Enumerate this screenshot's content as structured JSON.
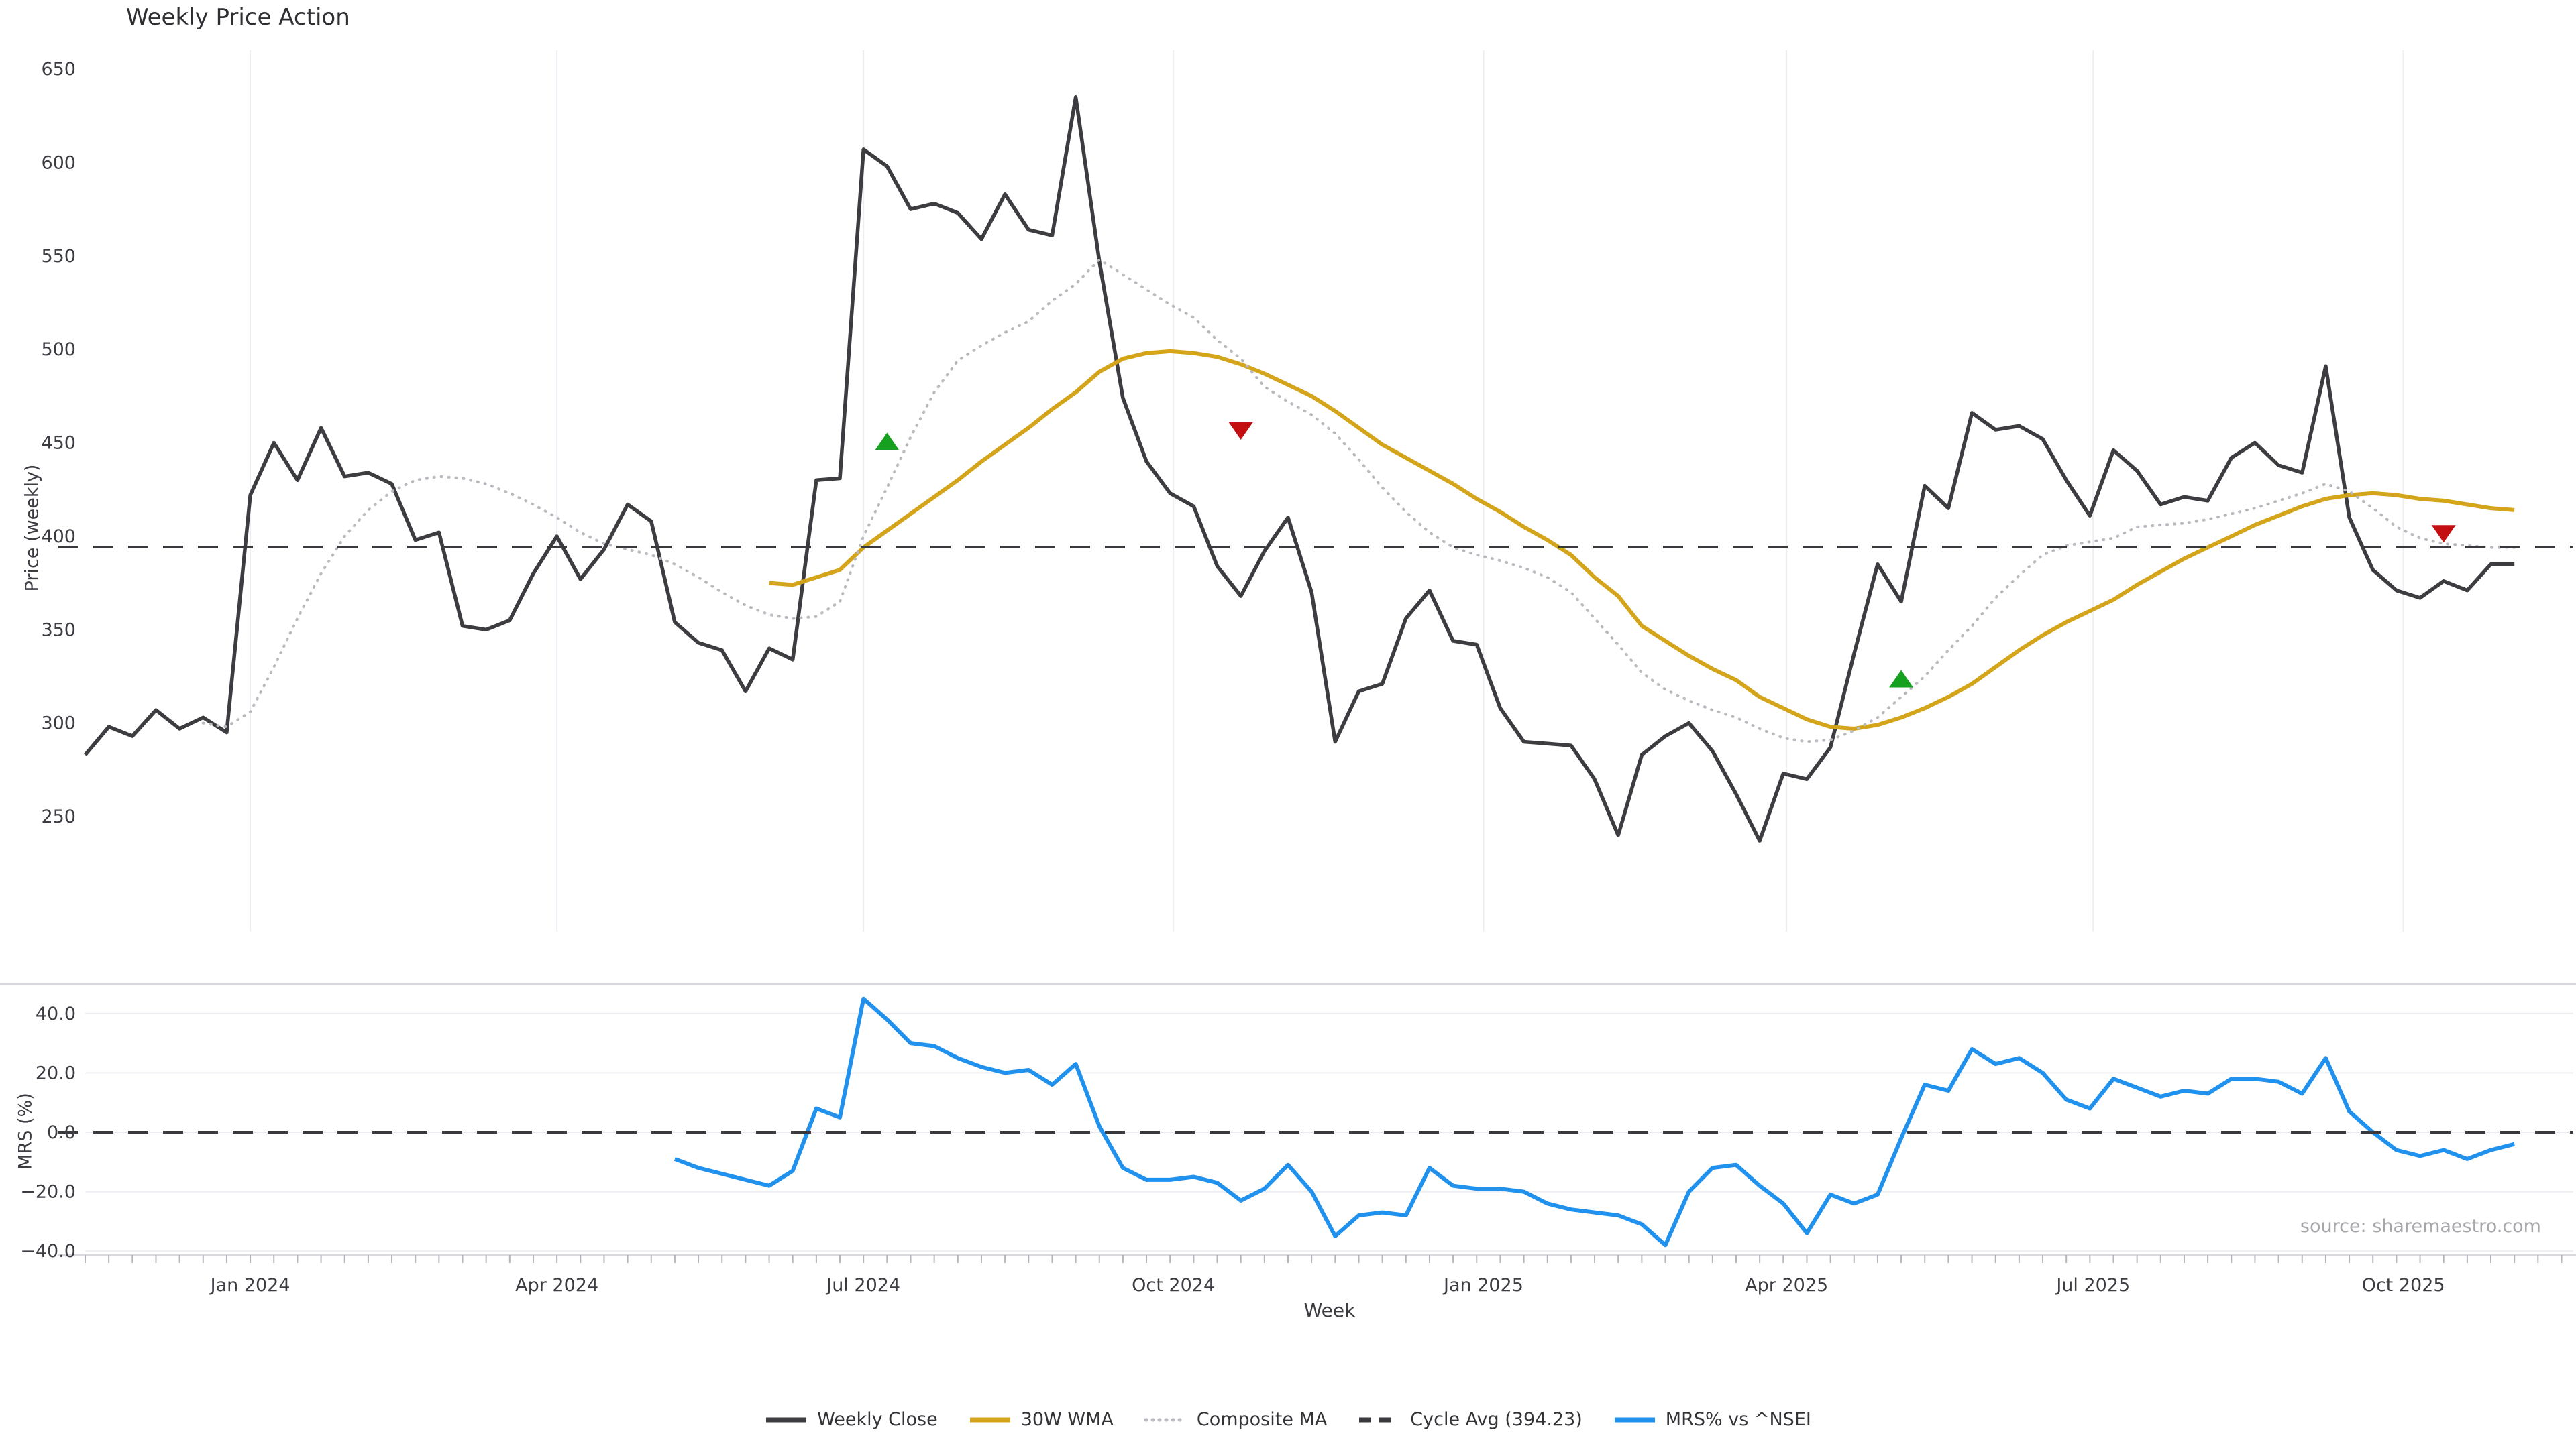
{
  "title": "Weekly Price Action",
  "source": "source: sharemaestro.com",
  "xlabel": "Week",
  "price_panel": {
    "ylabel": "Price (weekly)"
  },
  "mrs_panel": {
    "ylabel": "MRS (%)"
  },
  "legend": {
    "items": [
      {
        "label": "Weekly Close",
        "color": "#3d3d41",
        "style": "solid"
      },
      {
        "label": "30W WMA",
        "color": "#d4a41a",
        "style": "solid"
      },
      {
        "label": "Composite MA",
        "color": "#b9b9bf",
        "style": "dotted"
      },
      {
        "label": "Cycle Avg (394.23)",
        "color": "#3a3a3e",
        "style": "dashed"
      },
      {
        "label": "MRS% vs ^NSEI",
        "color": "#2191ee",
        "style": "solid"
      }
    ]
  },
  "colors": {
    "grid": "#ededf2",
    "panel_border": "#d8d8df",
    "tick": "#b4b4bc",
    "tick_label": "#3c3c43",
    "buy_marker": "#16a01f",
    "sell_marker": "#c40f12"
  },
  "chart_data": {
    "type": "line",
    "title": "Weekly Price Action",
    "xlabel": "Week",
    "x": {
      "unit": "week",
      "start": "2023-11-13",
      "count": 104
    },
    "x_ticks": [
      {
        "pos": 7.0,
        "label": "Jan 2024"
      },
      {
        "pos": 20.0,
        "label": "Apr 2024"
      },
      {
        "pos": 33.0,
        "label": "Jul 2024"
      },
      {
        "pos": 46.14,
        "label": "Oct 2024"
      },
      {
        "pos": 59.29,
        "label": "Jan 2025"
      },
      {
        "pos": 72.14,
        "label": "Apr 2025"
      },
      {
        "pos": 85.14,
        "label": "Jul 2025"
      },
      {
        "pos": 98.29,
        "label": "Oct 2025"
      }
    ],
    "panels": [
      {
        "id": "price",
        "ylabel": "Price (weekly)",
        "ylim": [
          203,
          660
        ],
        "yticks": [
          650,
          600,
          550,
          500,
          450,
          400,
          350,
          300,
          250
        ],
        "grid": "vertical"
      },
      {
        "id": "mrs",
        "ylabel": "MRS (%)",
        "ylim": [
          -47,
          50
        ],
        "yticks": [
          40.0,
          20.0,
          0.0,
          -20.0,
          -40.0
        ],
        "grid": "horizontal"
      }
    ],
    "cycle_avg": 394.23,
    "series": [
      {
        "name": "Weekly Close",
        "panel": "price",
        "color": "#3d3d41",
        "style": "solid",
        "width": 5.5,
        "values": [
          283,
          298,
          293,
          307,
          297,
          303,
          295,
          422,
          450,
          430,
          458,
          432,
          434,
          428,
          398,
          402,
          352,
          350,
          355,
          380,
          400,
          377,
          393,
          417,
          408,
          354,
          343,
          339,
          317,
          340,
          334,
          430,
          431,
          607,
          598,
          575,
          578,
          573,
          559,
          583,
          564,
          561,
          635,
          547,
          474,
          440,
          423,
          416,
          384,
          368,
          392,
          410,
          370,
          290,
          317,
          321,
          356,
          371,
          344,
          342,
          308,
          290,
          289,
          288,
          270,
          240,
          283,
          293,
          300,
          285,
          262,
          237,
          273,
          270,
          287,
          337,
          385,
          365,
          427,
          415,
          466,
          457,
          459,
          452,
          430,
          411,
          446,
          435,
          417,
          421,
          419,
          442,
          450,
          438,
          434,
          491,
          410,
          382,
          371,
          367,
          376,
          371,
          385,
          385
        ]
      },
      {
        "name": "30W WMA",
        "panel": "price",
        "color": "#d4a41a",
        "style": "solid",
        "width": 6,
        "values": [
          null,
          null,
          null,
          null,
          null,
          null,
          null,
          null,
          null,
          null,
          null,
          null,
          null,
          null,
          null,
          null,
          null,
          null,
          null,
          null,
          null,
          null,
          null,
          null,
          null,
          null,
          null,
          null,
          null,
          375,
          374,
          378,
          382,
          394,
          403,
          412,
          421,
          430,
          440,
          449,
          458,
          468,
          477,
          488,
          495,
          498,
          499,
          498,
          496,
          492,
          487,
          481,
          475,
          467,
          458,
          449,
          442,
          435,
          428,
          420,
          413,
          405,
          398,
          390,
          378,
          368,
          352,
          344,
          336,
          329,
          323,
          314,
          308,
          302,
          298,
          297,
          299,
          303,
          308,
          314,
          321,
          330,
          339,
          347,
          354,
          360,
          366,
          374,
          381,
          388,
          394,
          400,
          406,
          411,
          416,
          420,
          422,
          423,
          422,
          420,
          419,
          417,
          415,
          414
        ]
      },
      {
        "name": "Composite MA",
        "panel": "price",
        "color": "#b9b9bf",
        "style": "dotted",
        "width": 4,
        "values": [
          null,
          null,
          null,
          null,
          null,
          300,
          298,
          306,
          330,
          356,
          380,
          400,
          414,
          424,
          430,
          432,
          431,
          428,
          423,
          417,
          410,
          402,
          396,
          393,
          390,
          385,
          378,
          370,
          363,
          358,
          356,
          357,
          365,
          400,
          426,
          453,
          477,
          494,
          502,
          509,
          515,
          526,
          535,
          548,
          540,
          532,
          524,
          517,
          505,
          495,
          480,
          472,
          465,
          455,
          441,
          426,
          413,
          402,
          394,
          390,
          387,
          383,
          378,
          370,
          356,
          342,
          327,
          318,
          312,
          307,
          303,
          297,
          292,
          290,
          291,
          296,
          303,
          314,
          325,
          339,
          352,
          367,
          379,
          390,
          395,
          397,
          399,
          405,
          406,
          407,
          409,
          412,
          415,
          419,
          423,
          428,
          424,
          415,
          405,
          399,
          396,
          395,
          394,
          394
        ]
      },
      {
        "name": "Cycle Avg (394.23)",
        "panel": "price",
        "color": "#3a3a3e",
        "style": "dashed",
        "width": 4,
        "const_value": 394.23
      },
      {
        "name": "MRS% vs ^NSEI",
        "panel": "mrs",
        "color": "#2191ee",
        "style": "solid",
        "width": 6,
        "values": [
          null,
          null,
          null,
          null,
          null,
          null,
          null,
          null,
          null,
          null,
          null,
          null,
          null,
          null,
          null,
          null,
          null,
          null,
          null,
          null,
          null,
          null,
          null,
          null,
          null,
          -9,
          -12,
          -14,
          -16,
          -18,
          -13,
          8,
          5,
          45,
          38,
          30,
          29,
          25,
          22,
          20,
          21,
          16,
          23,
          2,
          -12,
          -16,
          -16,
          -15,
          -17,
          -23,
          -19,
          -11,
          -20,
          -35,
          -28,
          -27,
          -28,
          -12,
          -18,
          -19,
          -19,
          -20,
          -24,
          -26,
          -27,
          -28,
          -31,
          -38,
          -20,
          -12,
          -11,
          -18,
          -24,
          -34,
          -21,
          -24,
          -21,
          -2,
          16,
          14,
          28,
          23,
          25,
          20,
          11,
          8,
          18,
          15,
          12,
          14,
          13,
          18,
          18,
          17,
          13,
          25,
          7,
          0,
          -6,
          -8,
          -6,
          -9,
          -6,
          -4
        ]
      },
      {
        "name": "Zero Line",
        "panel": "mrs",
        "color": "#3a3a3e",
        "style": "dashed",
        "width": 4,
        "const_value": 0
      }
    ],
    "markers": {
      "buy": [
        {
          "week": 34,
          "value": 450
        },
        {
          "week": 77,
          "value": 323
        }
      ],
      "sell": [
        {
          "week": 49,
          "value": 457
        },
        {
          "week": 100,
          "value": 402
        }
      ]
    },
    "legend_position": "bottom-center"
  }
}
